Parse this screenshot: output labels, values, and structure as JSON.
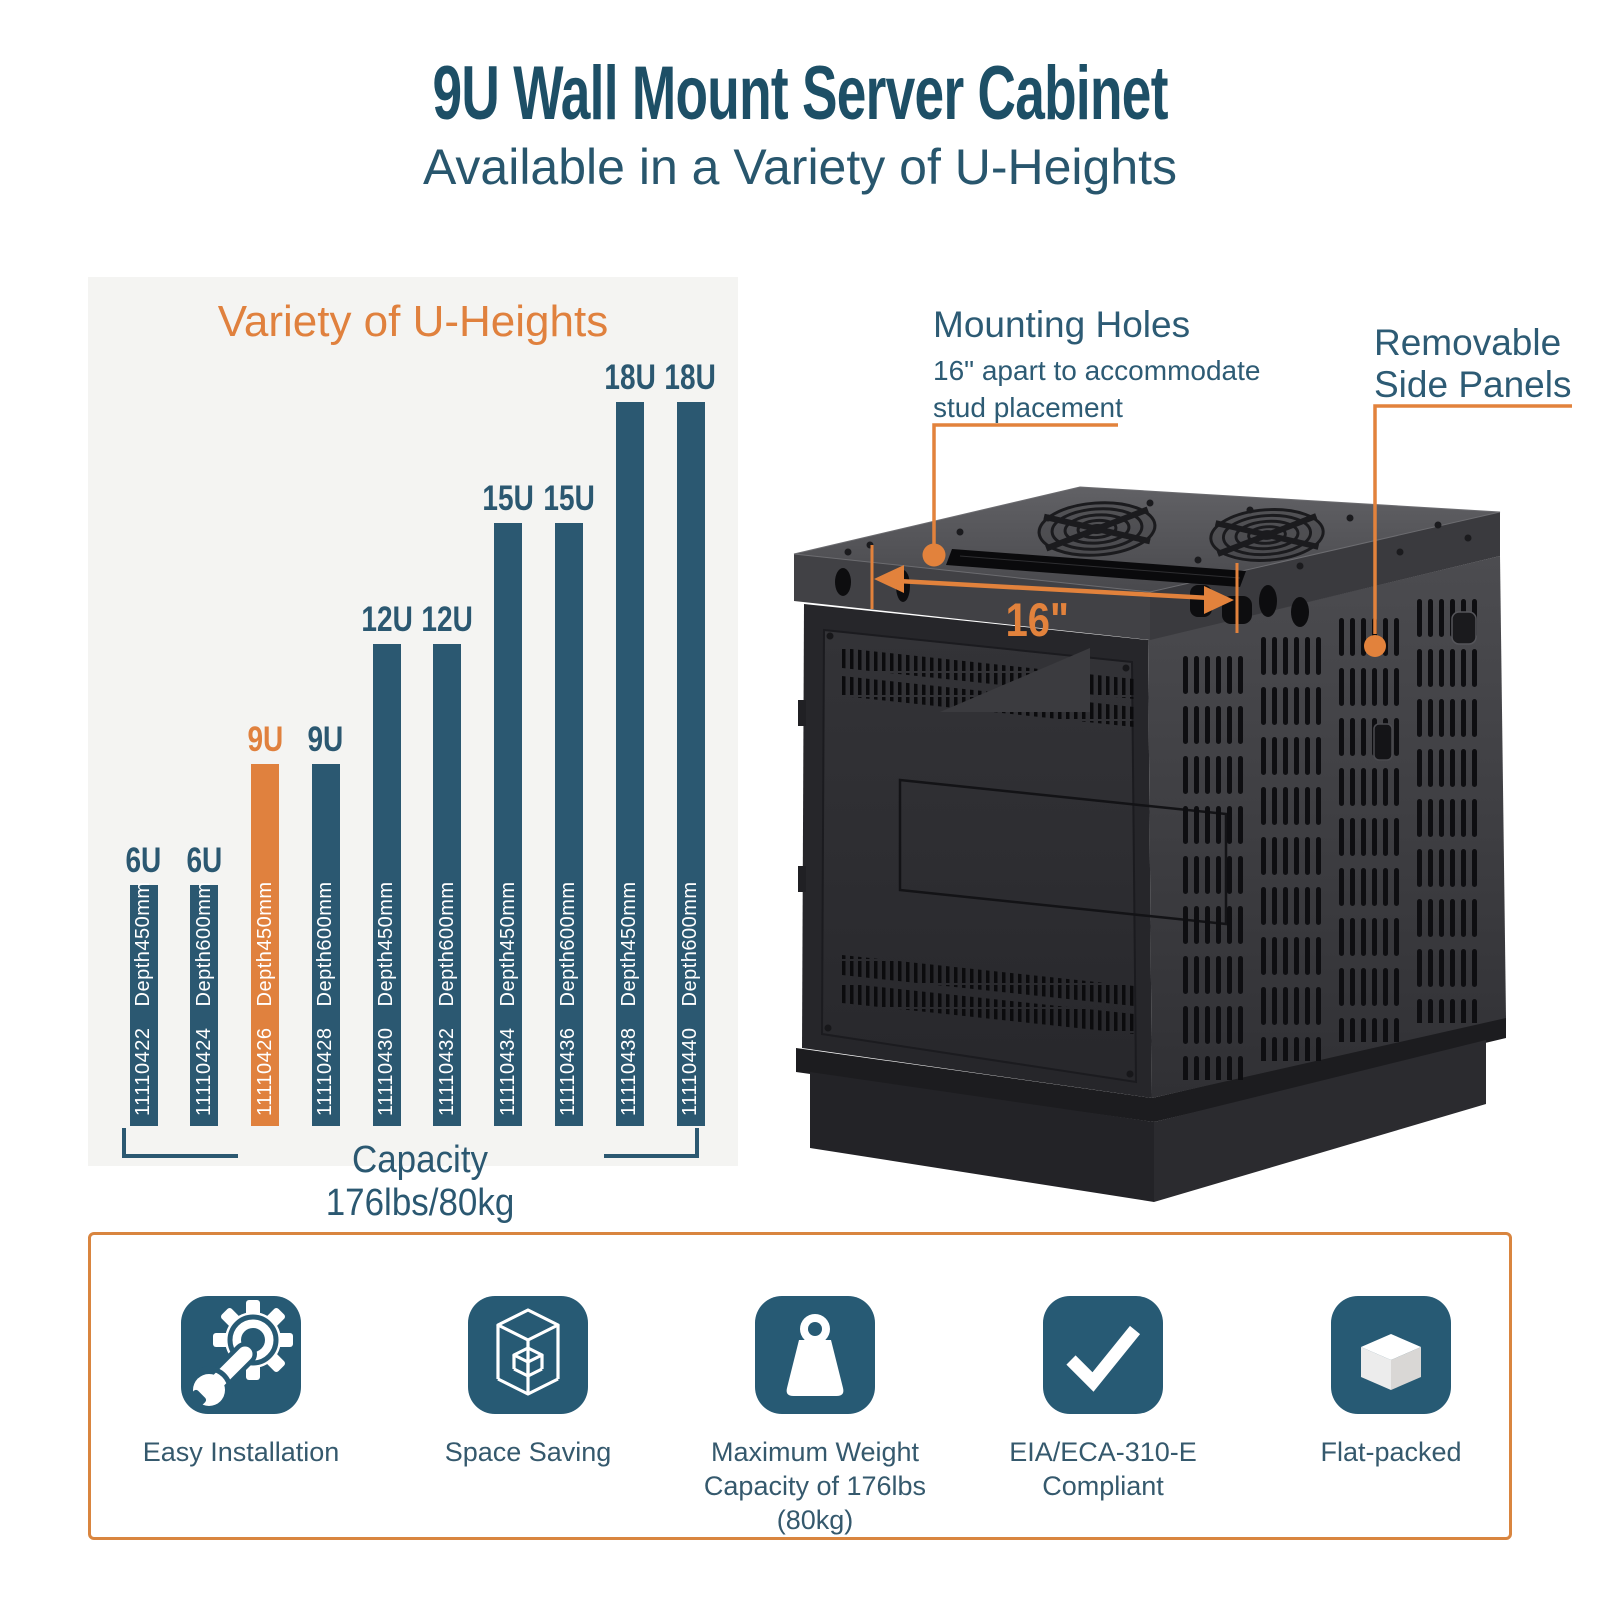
{
  "header": {
    "title": "9U Wall Mount Server Cabinet",
    "subtitle": "Available in a Variety of U-Heights"
  },
  "chart_data": {
    "type": "bar",
    "title": "Variety of U-Heights",
    "categories": [
      "6U",
      "6U",
      "9U",
      "9U",
      "12U",
      "12U",
      "15U",
      "15U",
      "18U",
      "18U"
    ],
    "values": [
      6,
      6,
      9,
      9,
      12,
      12,
      15,
      15,
      18,
      18
    ],
    "bars": [
      {
        "u_label": "6U",
        "u": 6,
        "part": "11110422",
        "depth": "Depth450mm",
        "highlight": false
      },
      {
        "u_label": "6U",
        "u": 6,
        "part": "11110424",
        "depth": "Depth600mm",
        "highlight": false
      },
      {
        "u_label": "9U",
        "u": 9,
        "part": "11110426",
        "depth": "Depth450mm",
        "highlight": true
      },
      {
        "u_label": "9U",
        "u": 9,
        "part": "11110428",
        "depth": "Depth600mm",
        "highlight": false
      },
      {
        "u_label": "12U",
        "u": 12,
        "part": "11110430",
        "depth": "Depth450mm",
        "highlight": false
      },
      {
        "u_label": "12U",
        "u": 12,
        "part": "11110432",
        "depth": "Depth600mm",
        "highlight": false
      },
      {
        "u_label": "15U",
        "u": 15,
        "part": "11110434",
        "depth": "Depth450mm",
        "highlight": false
      },
      {
        "u_label": "15U",
        "u": 15,
        "part": "11110436",
        "depth": "Depth600mm",
        "highlight": false
      },
      {
        "u_label": "18U",
        "u": 18,
        "part": "11110438",
        "depth": "Depth450mm",
        "highlight": false
      },
      {
        "u_label": "18U",
        "u": 18,
        "part": "11110440",
        "depth": "Depth600mm",
        "highlight": false
      }
    ],
    "footer": "Capacity 176lbs/80kg",
    "legend": "none",
    "grid": false,
    "ylim": [
      0,
      20
    ],
    "bar_color": "#2b5871",
    "highlight_color": "#e0813e"
  },
  "callouts": {
    "mounting_holes": {
      "title": "Mounting Holes",
      "desc_line1": "16\" apart to accommodate",
      "desc_line2": "stud placement"
    },
    "side_panels": {
      "line1": "Removable",
      "line2": "Side Panels"
    },
    "dimension_label": "16\""
  },
  "features": {
    "items": [
      {
        "icon": "wrench-gear-icon",
        "label_lines": [
          "Easy Installation"
        ]
      },
      {
        "icon": "cube-outline-icon",
        "label_lines": [
          "Space Saving"
        ]
      },
      {
        "icon": "weight-icon",
        "label_lines": [
          "Maximum Weight",
          "Capacity of 176lbs (80kg)"
        ]
      },
      {
        "icon": "checkmark-icon",
        "label_lines": [
          "EIA/ECA-310-E",
          "Compliant"
        ]
      },
      {
        "icon": "flat-box-icon",
        "label_lines": [
          "Flat-packed"
        ]
      }
    ]
  },
  "colors": {
    "accent_orange": "#e0813e",
    "teal": "#2b5871",
    "icon_background": "#275a74",
    "chart_panel_background": "#f4f4f2",
    "title_color": "#1d4f66"
  }
}
